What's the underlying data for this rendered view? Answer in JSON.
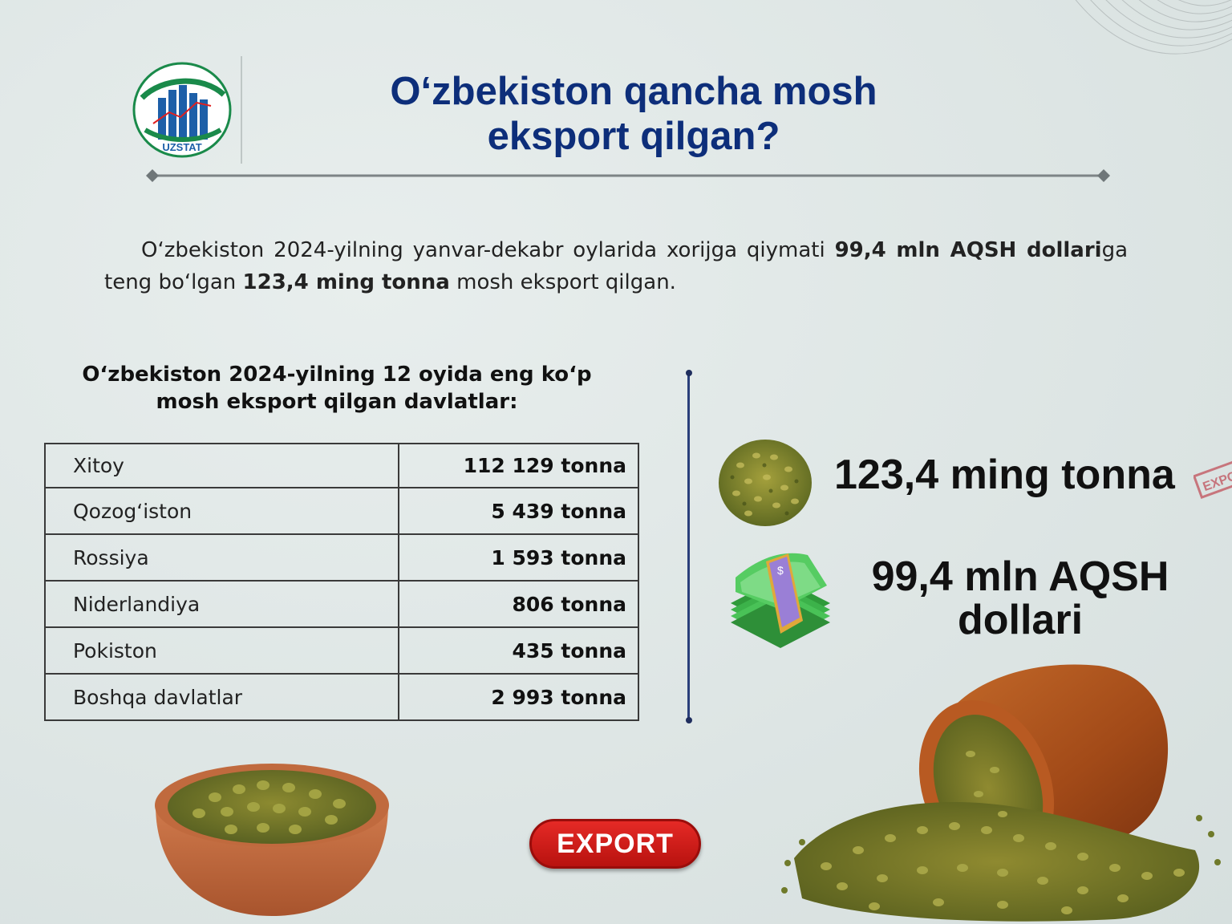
{
  "logo": {
    "text": "UZSTAT"
  },
  "title": {
    "line1": "O‘zbekiston qancha mosh",
    "line2": "eksport qilgan?"
  },
  "intro": {
    "part1": "O‘zbekiston 2024-yilning yanvar-dekabr oylarida xorijga qiymati ",
    "bold1": "99,4 mln AQSH dollari",
    "part2": "ga teng bo‘lgan ",
    "bold2": "123,4 ming tonna",
    "part3": " mosh eksport qilgan."
  },
  "table": {
    "title_line1": "O‘zbekiston 2024-yilning 12 oyida eng ko‘p",
    "title_line2": "mosh eksport qilgan davlatlar:",
    "rows": [
      {
        "country": "Xitoy",
        "value": "112 129 tonna"
      },
      {
        "country": "Qozog‘iston",
        "value": "5 439 tonna"
      },
      {
        "country": "Rossiya",
        "value": "1 593 tonna"
      },
      {
        "country": "Niderlandiya",
        "value": "806 tonna"
      },
      {
        "country": "Pokiston",
        "value": "435 tonna"
      },
      {
        "country": "Boshqa davlatlar",
        "value": "2 993 tonna"
      }
    ]
  },
  "stats": {
    "volume": "123,4 ming tonna",
    "value_line1": "99,4 mln AQSH",
    "value_line2": "dollari"
  },
  "stamp_text": "EXPO",
  "export_button": "EXPORT",
  "icons": [
    "uzstat-logo-icon",
    "mung-bean-pile-icon",
    "money-stack-icon",
    "bean-bowl-image",
    "wooden-pot-beans-image",
    "export-stamp-icon"
  ],
  "colors": {
    "title": "#0d2e7a",
    "button": "#d41e1b",
    "background": "#dfe7e6"
  }
}
